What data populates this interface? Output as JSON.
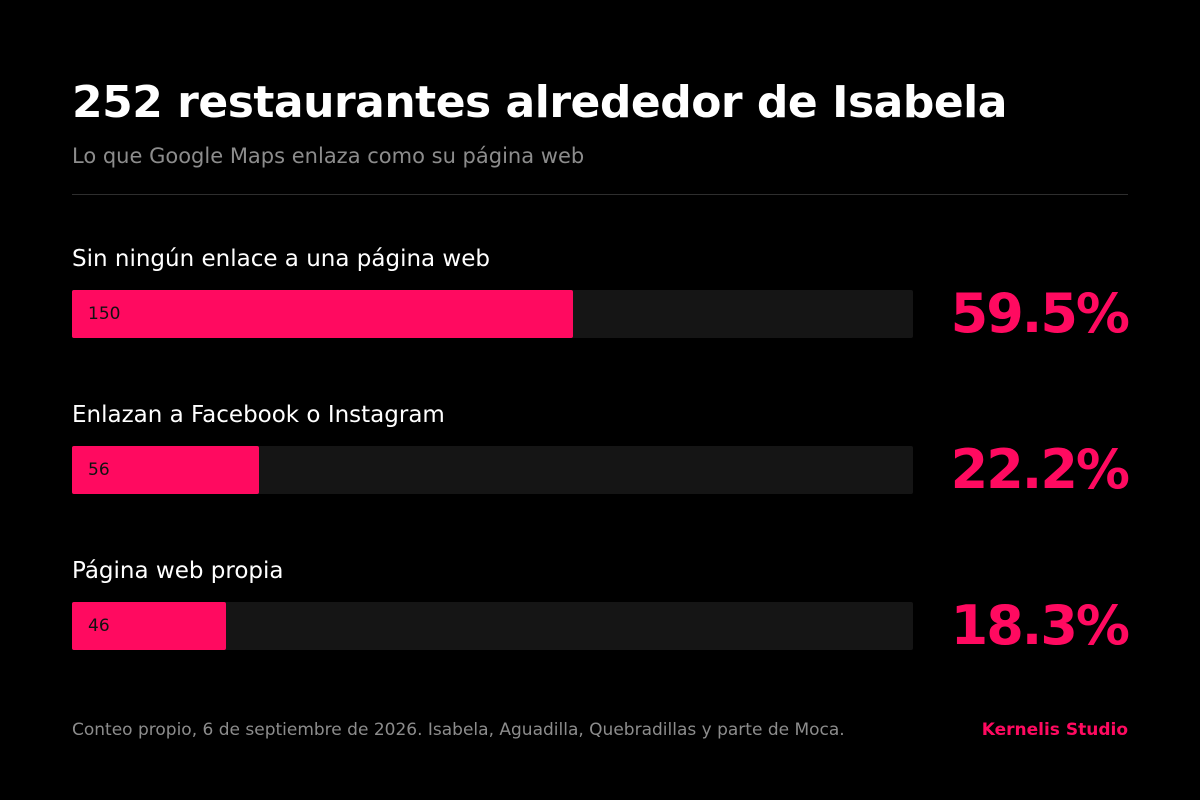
{
  "header": {
    "title": "252 restaurantes alrededor de Isabela",
    "subtitle": "Lo que Google Maps enlaza como su página web"
  },
  "colors": {
    "accent": "#ff0a60",
    "track": "#151515",
    "background": "#000000"
  },
  "chart_data": {
    "type": "bar",
    "orientation": "horizontal",
    "total": 252,
    "categories": [
      "Sin ningún enlace a una página web",
      "Enlazan a Facebook o Instagram",
      "Página web propia"
    ],
    "values": [
      150,
      56,
      46
    ],
    "percent_labels": [
      "59.5%",
      "22.2%",
      "18.3%"
    ],
    "xlim": [
      0,
      252
    ],
    "grid": false
  },
  "bars": [
    {
      "label": "Sin ningún enlace a una página web",
      "count": "150",
      "percent": "59.5%"
    },
    {
      "label": "Enlazan a Facebook o Instagram",
      "count": "56",
      "percent": "22.2%"
    },
    {
      "label": "Página web propia",
      "count": "46",
      "percent": "18.3%"
    }
  ],
  "footer": {
    "note": "Conteo propio, 6 de septiembre de 2026. Isabela, Aguadilla, Quebradillas y parte de Moca.",
    "brand": "Kernelis Studio"
  }
}
